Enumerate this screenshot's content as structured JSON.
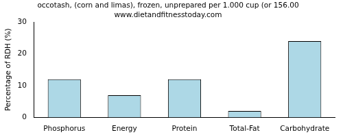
{
  "chart_data": {
    "type": "bar",
    "title": "occotash, (corn and limas), frozen, unprepared per 1.000 cup (or 156.00",
    "subtitle": "www.dietandfitnesstoday.com",
    "y_label": "Percentage of RDH (%)",
    "categories": [
      "Phosphorus",
      "Energy",
      "Protein",
      "Total-Fat",
      "Carbohydrate"
    ],
    "values": [
      12,
      7,
      12,
      2,
      24
    ],
    "color": "#add8e6",
    "ylim": [
      0,
      30
    ],
    "yticks": [
      0,
      10,
      20,
      30
    ],
    "grid": false
  }
}
